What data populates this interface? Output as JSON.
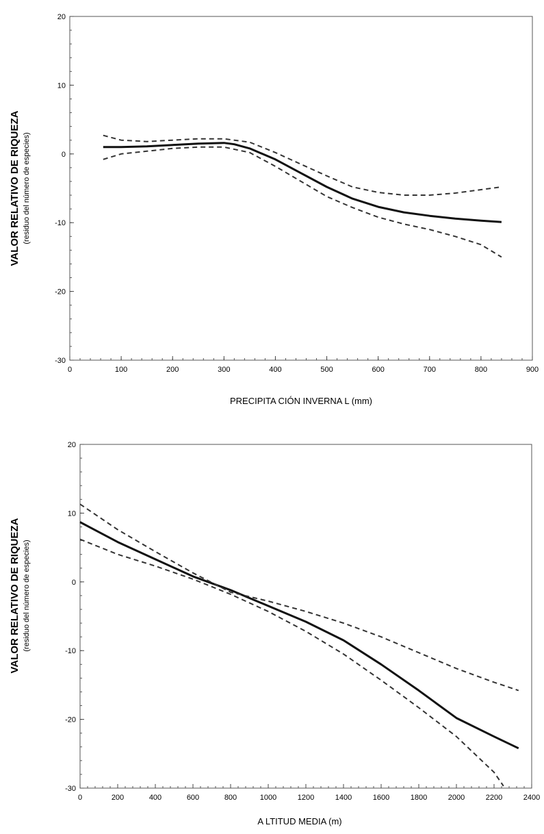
{
  "chart_data": [
    {
      "type": "line",
      "ylabel": "VALOR RELATIVO DE RIQUEZA",
      "ylabel_sub": "(residuo del número de especies)",
      "xlabel": "PRECIPITA CIÓN INVERNA L (mm)",
      "xlim": [
        0,
        900
      ],
      "ylim": [
        -30,
        20
      ],
      "xticks": [
        0,
        100,
        200,
        300,
        400,
        500,
        600,
        700,
        800,
        900
      ],
      "yticks": [
        20,
        10,
        0,
        -10,
        -20,
        -30
      ],
      "grid": false,
      "series": [
        {
          "style": "solid",
          "x": [
            65,
            100,
            150,
            200,
            250,
            300,
            320,
            350,
            400,
            450,
            500,
            550,
            600,
            650,
            700,
            750,
            800,
            840
          ],
          "y": [
            1.0,
            1.0,
            1.1,
            1.3,
            1.5,
            1.6,
            1.4,
            0.8,
            -0.8,
            -2.8,
            -4.8,
            -6.5,
            -7.7,
            -8.5,
            -9.0,
            -9.4,
            -9.7,
            -9.9
          ]
        },
        {
          "style": "dashed",
          "x": [
            65,
            100,
            150,
            200,
            250,
            300,
            350,
            400,
            450,
            500,
            550,
            600,
            650,
            700,
            750,
            800,
            840
          ],
          "y": [
            2.7,
            2.0,
            1.8,
            2.0,
            2.2,
            2.2,
            1.7,
            0.2,
            -1.5,
            -3.2,
            -4.8,
            -5.6,
            -6.0,
            -6.0,
            -5.7,
            -5.2,
            -4.8
          ]
        },
        {
          "style": "dashed",
          "x": [
            65,
            100,
            150,
            200,
            250,
            300,
            350,
            400,
            450,
            500,
            550,
            600,
            650,
            700,
            750,
            800,
            840
          ],
          "y": [
            -0.8,
            0.0,
            0.4,
            0.8,
            1.0,
            1.0,
            0.2,
            -1.8,
            -4.0,
            -6.2,
            -7.8,
            -9.2,
            -10.2,
            -11.0,
            -12.0,
            -13.2,
            -15.0
          ]
        }
      ]
    },
    {
      "type": "line",
      "ylabel": "VALOR RELATIVO DE RIQUEZA",
      "ylabel_sub": "(residuo del número de especies)",
      "xlabel": "A LTITUD MEDIA (m)",
      "xlim": [
        0,
        2400
      ],
      "ylim": [
        -30,
        20
      ],
      "xticks": [
        0,
        200,
        400,
        600,
        800,
        1000,
        1200,
        1400,
        1600,
        1800,
        2000,
        2200,
        2400
      ],
      "yticks": [
        20,
        10,
        0,
        -10,
        -20,
        -30
      ],
      "grid": false,
      "series": [
        {
          "style": "solid",
          "x": [
            0,
            200,
            400,
            600,
            800,
            1000,
            1200,
            1400,
            1600,
            1800,
            2000,
            2200,
            2330
          ],
          "y": [
            8.7,
            5.8,
            3.3,
            0.8,
            -1.2,
            -3.5,
            -5.8,
            -8.5,
            -12.0,
            -15.8,
            -19.8,
            -22.5,
            -24.2
          ]
        },
        {
          "style": "dashed",
          "x": [
            0,
            200,
            400,
            600,
            800,
            1000,
            1200,
            1400,
            1600,
            1800,
            2000,
            2200,
            2330
          ],
          "y": [
            11.3,
            7.6,
            4.4,
            1.3,
            -1.5,
            -2.8,
            -4.3,
            -6.0,
            -8.0,
            -10.3,
            -12.6,
            -14.6,
            -15.8
          ]
        },
        {
          "style": "dashed",
          "x": [
            0,
            200,
            400,
            600,
            800,
            1000,
            1200,
            1400,
            1600,
            1800,
            2000,
            2200,
            2250
          ],
          "y": [
            6.2,
            4.0,
            2.3,
            0.4,
            -1.8,
            -4.3,
            -7.2,
            -10.5,
            -14.3,
            -18.3,
            -22.5,
            -27.7,
            -29.7
          ]
        }
      ]
    }
  ]
}
